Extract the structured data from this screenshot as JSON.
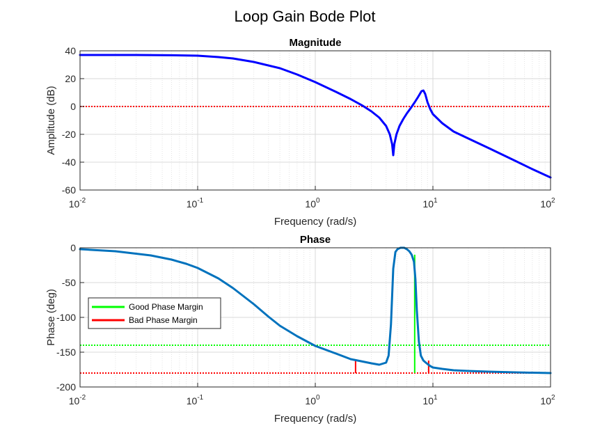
{
  "figure": {
    "title": "Loop Gain Bode Plot",
    "colors": {
      "magnitude_line": "#0000ff",
      "phase_line": "#0072bd",
      "zero_db_ref": "#ff0000",
      "good_margin": "#00ff00",
      "bad_margin": "#ff0000",
      "grid": "#d9d9d9"
    }
  },
  "chart_data": [
    {
      "type": "line",
      "title": "Magnitude",
      "xlabel": "Frequency (rad/s)",
      "ylabel": "Amplitude (dB)",
      "xscale": "log",
      "xlim": [
        0.01,
        100
      ],
      "ylim": [
        -60,
        40
      ],
      "xticks": [
        0.01,
        0.1,
        1,
        10,
        100
      ],
      "xtick_labels": [
        {
          "base": "10",
          "exp": "-2"
        },
        {
          "base": "10",
          "exp": "-1"
        },
        {
          "base": "10",
          "exp": "0"
        },
        {
          "base": "10",
          "exp": "1"
        },
        {
          "base": "10",
          "exp": "2"
        }
      ],
      "yticks": [
        -60,
        -40,
        -20,
        0,
        20,
        40
      ],
      "grid": true,
      "series": [
        {
          "x": [
            0.01,
            0.03,
            0.06,
            0.1,
            0.15,
            0.2,
            0.3,
            0.5,
            0.7,
            1.0,
            1.5,
            2.0,
            2.5,
            3.0,
            3.5,
            4.0,
            4.3,
            4.5,
            4.6,
            4.7,
            4.9,
            5.2,
            5.6,
            6.0,
            6.5,
            7.0,
            7.5,
            8.0,
            8.3,
            8.6,
            9.0,
            9.5,
            10,
            12,
            15,
            20,
            30,
            50,
            70,
            100
          ],
          "values": [
            37,
            37,
            36.8,
            36.5,
            35.5,
            34.5,
            32,
            27.5,
            23,
            17.5,
            10.5,
            5.3,
            0.8,
            -3.5,
            -8,
            -14,
            -20,
            -27,
            -35,
            -27,
            -20,
            -14,
            -9,
            -5,
            -1,
            3,
            7,
            11,
            11.5,
            9,
            3,
            -2,
            -5.5,
            -12,
            -18,
            -23,
            -30,
            -39,
            -45,
            -51
          ]
        }
      ],
      "reference_lines": [
        {
          "y": 0,
          "style": "dotted",
          "color": "#ff0000"
        }
      ]
    },
    {
      "type": "line",
      "title": "Phase",
      "xlabel": "Frequency (rad/s)",
      "ylabel": "Phase (deg)",
      "xscale": "log",
      "xlim": [
        0.01,
        100
      ],
      "ylim": [
        -200,
        0
      ],
      "xticks": [
        0.01,
        0.1,
        1,
        10,
        100
      ],
      "xtick_labels": [
        {
          "base": "10",
          "exp": "-2"
        },
        {
          "base": "10",
          "exp": "-1"
        },
        {
          "base": "10",
          "exp": "0"
        },
        {
          "base": "10",
          "exp": "1"
        },
        {
          "base": "10",
          "exp": "2"
        }
      ],
      "yticks": [
        -200,
        -150,
        -100,
        -50,
        0
      ],
      "grid": true,
      "legend": {
        "location": "center-left",
        "entries": [
          {
            "label": "Good Phase Margin",
            "color": "#00ff00"
          },
          {
            "label": "Bad Phase Margin",
            "color": "#ff0000"
          }
        ]
      },
      "series": [
        {
          "x": [
            0.01,
            0.02,
            0.04,
            0.06,
            0.08,
            0.1,
            0.15,
            0.2,
            0.3,
            0.4,
            0.5,
            0.7,
            1.0,
            1.5,
            2.0,
            3.0,
            3.5,
            4.0,
            4.2,
            4.4,
            4.6,
            4.8,
            5.0,
            5.3,
            5.7,
            6.0,
            6.3,
            6.6,
            6.9,
            7.1,
            7.3,
            7.6,
            7.9,
            8.3,
            8.7,
            9.0,
            9.5,
            10,
            12,
            15,
            20,
            30,
            50,
            100
          ],
          "values": [
            -2,
            -5,
            -11,
            -17,
            -23,
            -29,
            -44,
            -58,
            -81,
            -99,
            -112,
            -127,
            -141,
            -152,
            -160,
            -166,
            -168,
            -165,
            -155,
            -110,
            -30,
            -6,
            -2,
            0,
            0,
            -2,
            -5,
            -10,
            -20,
            -45,
            -90,
            -135,
            -155,
            -162,
            -165,
            -167,
            -170,
            -172,
            -174,
            -176,
            -177,
            -178,
            -179,
            -180
          ]
        }
      ],
      "reference_lines": [
        {
          "y": -140,
          "style": "dotted",
          "color": "#00ff00"
        },
        {
          "y": -180,
          "style": "dotted",
          "color": "#ff0000"
        }
      ],
      "margin_lines": [
        {
          "x": 2.2,
          "y_from": -180,
          "y_to": -160,
          "kind": "bad"
        },
        {
          "x": 7.0,
          "y_from": -180,
          "y_to": -10,
          "kind": "good"
        },
        {
          "x": 9.2,
          "y_from": -180,
          "y_to": -162,
          "kind": "bad"
        }
      ]
    }
  ]
}
